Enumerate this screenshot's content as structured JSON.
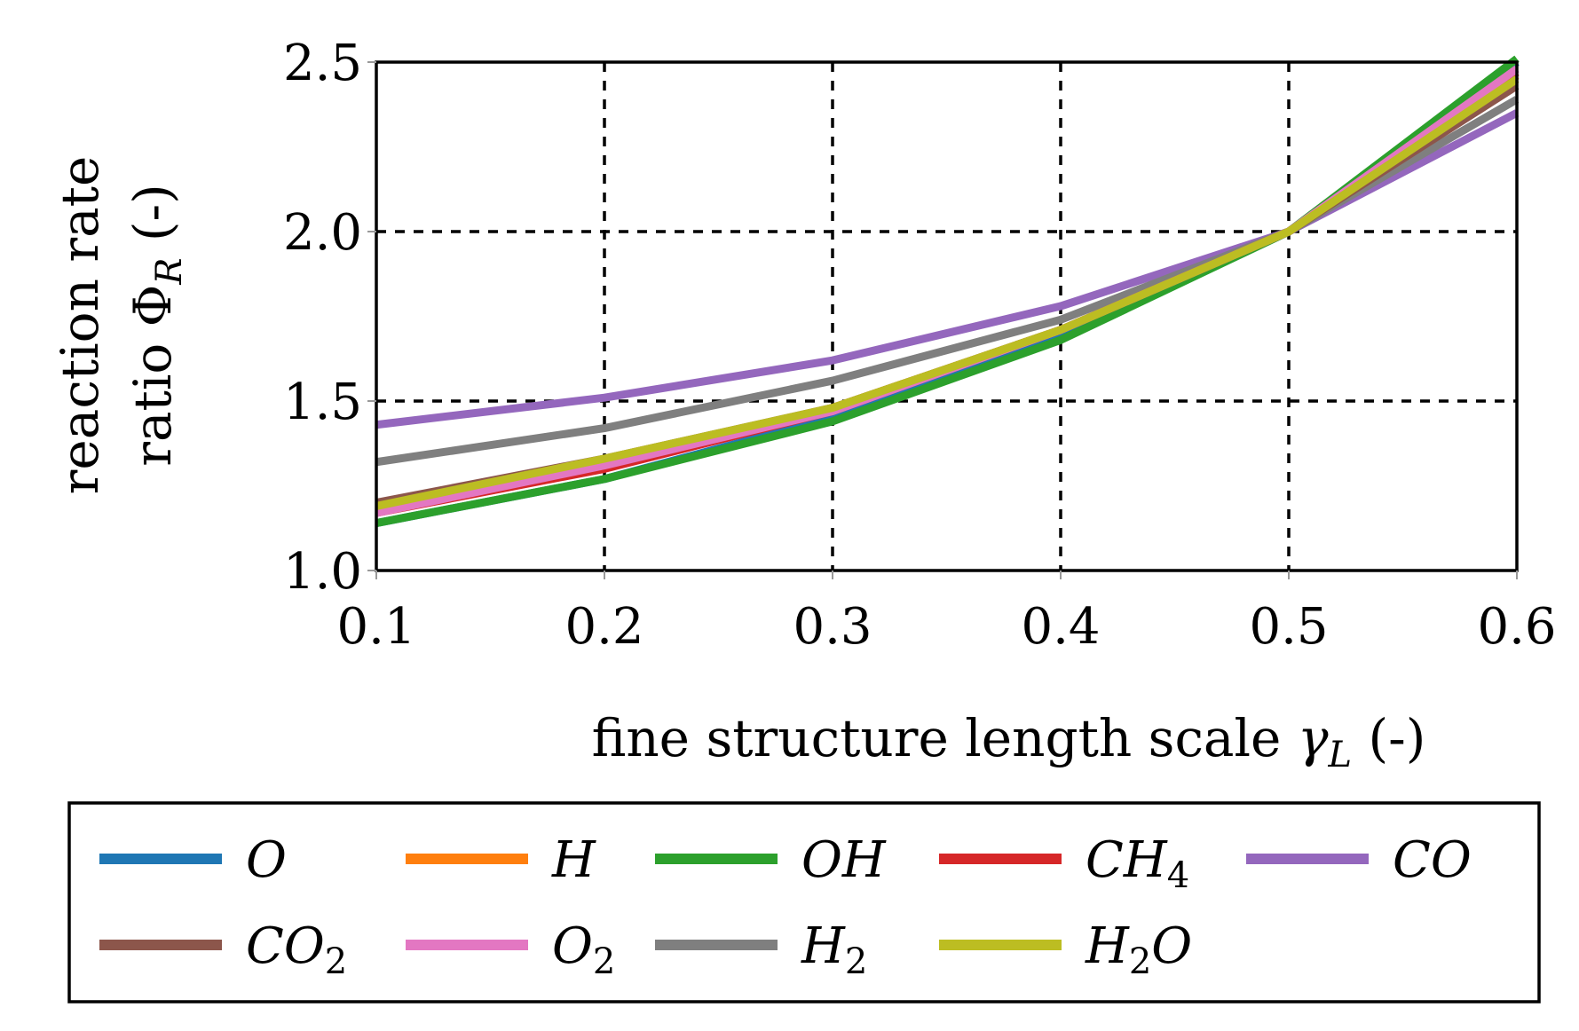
{
  "chart_data": {
    "type": "line",
    "x": [
      0.1,
      0.2,
      0.3,
      0.4,
      0.5,
      0.6
    ],
    "xlim": [
      0.1,
      0.6
    ],
    "ylim": [
      1.0,
      2.5
    ],
    "xticks": [
      "0.1",
      "0.2",
      "0.3",
      "0.4",
      "0.5",
      "0.6"
    ],
    "yticks": [
      "1.0",
      "1.5",
      "2.0",
      "2.5"
    ],
    "xlabel": "fine structure length scale γL (-)",
    "xlabel_parts": {
      "text": "fine structure length scale ",
      "symbol": "γ",
      "sub": "L",
      "unit": " (-)"
    },
    "ylabel_line1": "reaction rate",
    "ylabel_line2": {
      "text": "ratio ",
      "symbol": "Φ",
      "sub": "R",
      "unit": " (-)"
    },
    "grid": true,
    "grid_style": "dashed",
    "legend_position": "bottom",
    "series": [
      {
        "name": "O",
        "sub": "",
        "name_after": "",
        "color": "#1f77b4",
        "values": [
          1.14,
          1.27,
          1.45,
          1.69,
          2.0,
          2.5
        ]
      },
      {
        "name": "H",
        "sub": "",
        "name_after": "",
        "color": "#ff7f0e",
        "values": [
          1.19,
          1.32,
          1.48,
          1.71,
          2.0,
          2.46
        ]
      },
      {
        "name": "OH",
        "sub": "",
        "name_after": "",
        "color": "#2ca02c",
        "values": [
          1.14,
          1.27,
          1.44,
          1.68,
          2.0,
          2.51
        ]
      },
      {
        "name": "CH",
        "sub": "4",
        "name_after": "",
        "color": "#d62728",
        "values": [
          1.17,
          1.3,
          1.47,
          1.71,
          2.0,
          2.47
        ]
      },
      {
        "name": "CO",
        "sub": "",
        "name_after": "",
        "color": "#9467bd",
        "values": [
          1.43,
          1.51,
          1.62,
          1.78,
          2.0,
          2.35
        ]
      },
      {
        "name": "CO",
        "sub": "2",
        "name_after": "",
        "color": "#8c564b",
        "values": [
          1.2,
          1.33,
          1.48,
          1.71,
          2.0,
          2.43
        ]
      },
      {
        "name": "O",
        "sub": "2",
        "name_after": "",
        "color": "#e377c2",
        "values": [
          1.17,
          1.31,
          1.47,
          1.71,
          2.0,
          2.48
        ]
      },
      {
        "name": "H",
        "sub": "2",
        "name_after": "",
        "color": "#7f7f7f",
        "values": [
          1.32,
          1.42,
          1.56,
          1.74,
          2.0,
          2.39
        ]
      },
      {
        "name": "H",
        "sub": "2",
        "name_after": "O",
        "color": "#bcbd22",
        "values": [
          1.19,
          1.33,
          1.48,
          1.71,
          2.0,
          2.45
        ]
      }
    ]
  }
}
